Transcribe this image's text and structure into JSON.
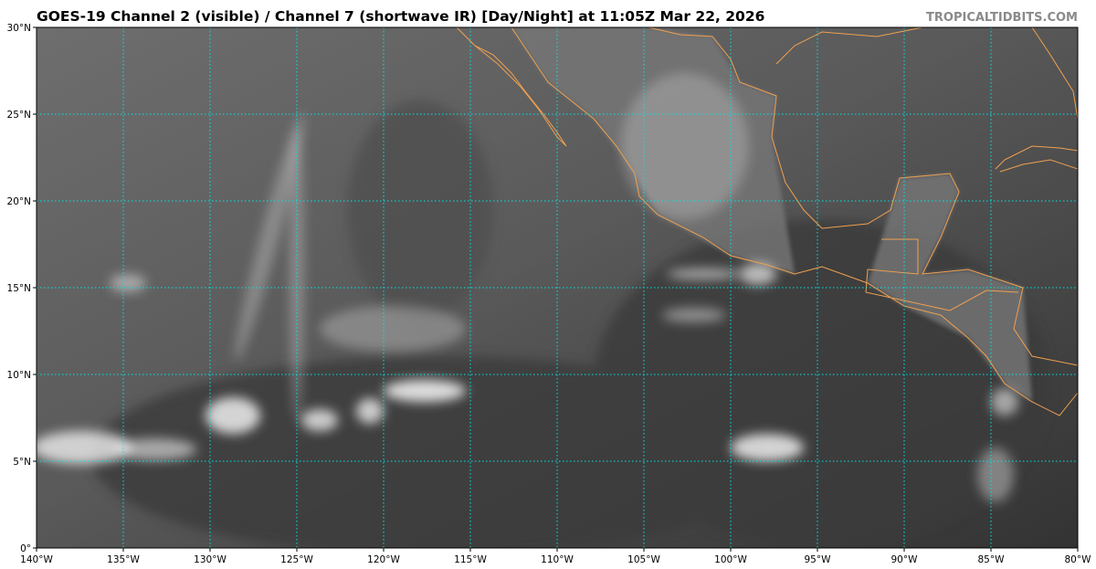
{
  "title": "GOES-19 Channel 2 (visible) / Channel 7 (shortwave IR) [Day/Night] at 11:05Z Mar 22, 2026",
  "watermark": "TROPICALTIDBITS.COM",
  "map": {
    "lon_range": [
      -140,
      -80
    ],
    "lat_range": [
      0,
      30
    ],
    "lat_ticks": [
      "0°",
      "5°N",
      "10°N",
      "15°N",
      "20°N",
      "25°N",
      "30°N"
    ],
    "lon_ticks": [
      "140°W",
      "135°W",
      "130°W",
      "125°W",
      "120°W",
      "115°W",
      "110°W",
      "105°W",
      "100°W",
      "95°W",
      "90°W",
      "85°W",
      "80°W"
    ],
    "gridline_color": "#00e5e5",
    "coastline_color": "#f0a050",
    "imagery": "grayscale satellite"
  }
}
